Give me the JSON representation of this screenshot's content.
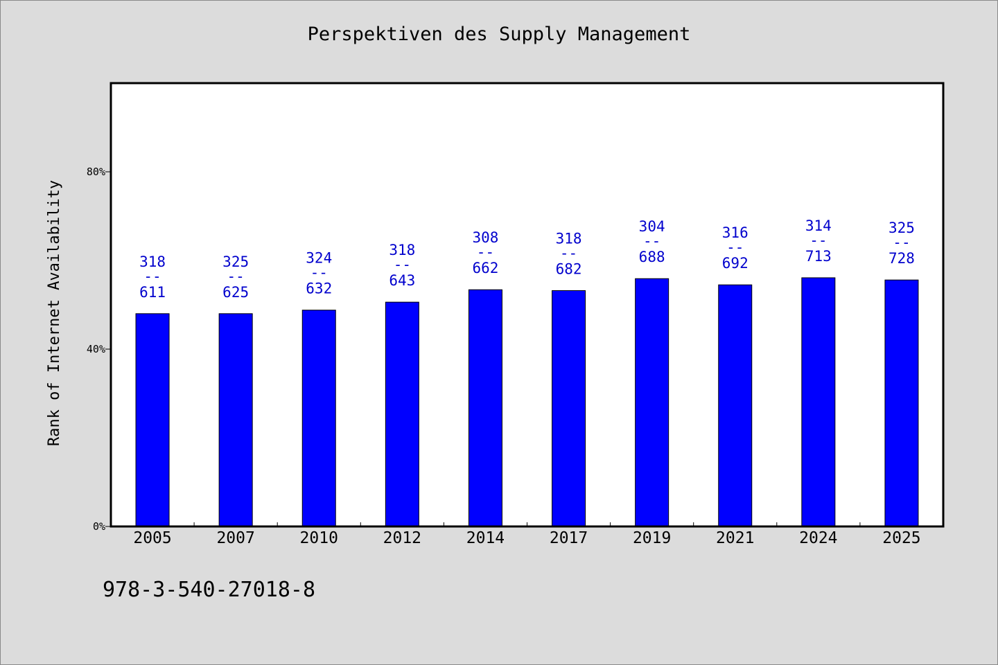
{
  "chart_data": {
    "type": "bar",
    "title": "Perspektiven des Supply Management",
    "xlabel": "",
    "ylabel": "Rank of Internet Availability",
    "ylim": [
      0,
      100
    ],
    "yticks": [
      {
        "value": 0,
        "label": "0%"
      },
      {
        "value": 40,
        "label": "40%"
      },
      {
        "value": 80,
        "label": "80%"
      }
    ],
    "categories": [
      "2005",
      "2007",
      "2010",
      "2012",
      "2014",
      "2017",
      "2019",
      "2021",
      "2024",
      "2025"
    ],
    "values": [
      48.0,
      48.0,
      48.8,
      50.6,
      53.4,
      53.2,
      55.9,
      54.5,
      56.1,
      55.6
    ],
    "bar_labels": [
      {
        "top": "318",
        "sep": "--",
        "bottom": "611"
      },
      {
        "top": "325",
        "sep": "--",
        "bottom": "625"
      },
      {
        "top": "324",
        "sep": "--",
        "bottom": "632"
      },
      {
        "top": "318",
        "sep": "--",
        "bottom": "643"
      },
      {
        "top": "308",
        "sep": "--",
        "bottom": "662"
      },
      {
        "top": "318",
        "sep": "--",
        "bottom": "682"
      },
      {
        "top": "304",
        "sep": "--",
        "bottom": "688"
      },
      {
        "top": "316",
        "sep": "--",
        "bottom": "692"
      },
      {
        "top": "314",
        "sep": "--",
        "bottom": "713"
      },
      {
        "top": "325",
        "sep": "--",
        "bottom": "728"
      }
    ],
    "bar_color": "#0000ff",
    "label_color": "#0000cd",
    "grid": false,
    "legend": "none"
  },
  "footnote": "978-3-540-27018-8"
}
